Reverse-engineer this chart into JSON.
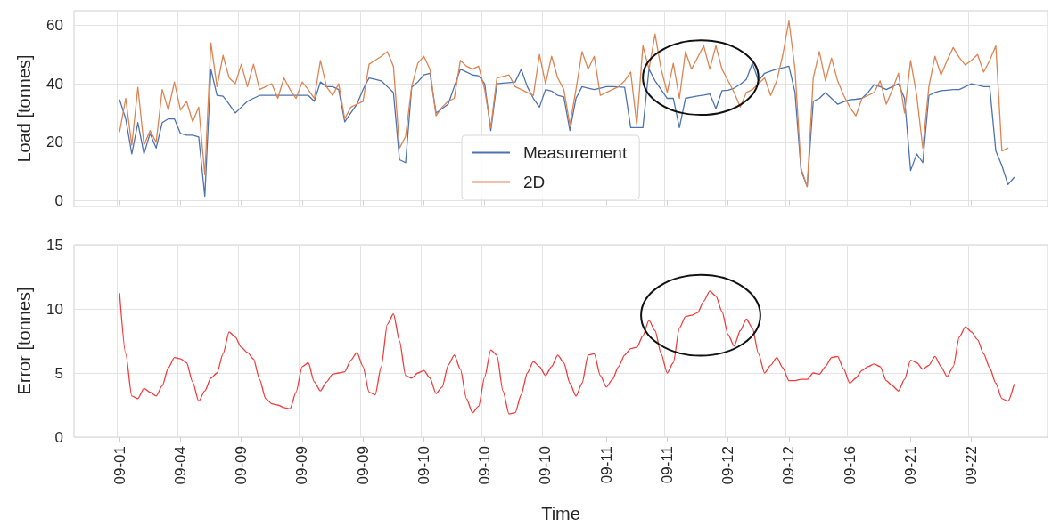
{
  "chart_data": [
    {
      "type": "line",
      "ylabel": "Load [tonnes]",
      "ylim": [
        -2,
        65
      ],
      "yticks": [
        0,
        20,
        40,
        60
      ],
      "categories": [
        null,
        null,
        null,
        null,
        null,
        null,
        null,
        null,
        null,
        null,
        null,
        null,
        null,
        null,
        null,
        null,
        null,
        null,
        null,
        null,
        null,
        null,
        null,
        null,
        null,
        null,
        null,
        null,
        null,
        null,
        null,
        null,
        null,
        null,
        null,
        null,
        null,
        null,
        null,
        null,
        null,
        null,
        null,
        null,
        null,
        null,
        null,
        null,
        null,
        null,
        null,
        null,
        null,
        null,
        null,
        null,
        null,
        null,
        null,
        null,
        null,
        null,
        null,
        null,
        null,
        null,
        null,
        null,
        null,
        null,
        null,
        null,
        null,
        null,
        null,
        null,
        null,
        null,
        null,
        null,
        null,
        null,
        null,
        null,
        null,
        null,
        null,
        null,
        null,
        null,
        null,
        null,
        null,
        null,
        null,
        null,
        null,
        null,
        null,
        null,
        null,
        null,
        null,
        null,
        null,
        null,
        null,
        null,
        null,
        null,
        null,
        null,
        null,
        null,
        null,
        null,
        null,
        null,
        null,
        null,
        null,
        null,
        null,
        null,
        null,
        null,
        null,
        null,
        null,
        null,
        null,
        null,
        null,
        null,
        null,
        null,
        null,
        null,
        null,
        null,
        null,
        null,
        null,
        null,
        null,
        null,
        null,
        null,
        null,
        null,
        null,
        null,
        null,
        null,
        null,
        null,
        null,
        null,
        null,
        null
      ],
      "tick_labels": "y",
      "grid": true,
      "legend": "bottom",
      "marker": "none",
      "line_style": "solid",
      "series": [
        {
          "name": "Measurement",
          "color": "#4c72b0",
          "values": [
            null,
            null,
            null,
            null,
            null,
            null,
            null,
            34.5,
            28,
            16,
            26.7,
            16,
            23,
            18,
            26.7,
            28,
            28,
            23,
            22.4,
            22.4,
            21.8,
            1.5,
            45,
            36,
            35.7,
            33,
            30,
            32,
            34,
            35,
            36,
            36,
            36,
            36,
            36,
            36,
            36,
            36,
            36,
            34,
            40.6,
            39,
            39,
            38,
            27,
            30,
            33,
            38,
            42,
            41.5,
            41,
            39,
            37,
            14,
            13,
            38.8,
            40.6,
            43,
            43.6,
            30,
            31.5,
            33,
            39,
            45,
            44,
            43,
            42.7,
            40,
            24,
            40,
            40.2,
            40.4,
            40.6,
            45,
            39,
            35,
            32,
            38,
            37.5,
            36,
            35.5,
            24,
            35,
            39,
            38.5,
            38,
            38.5,
            39,
            39,
            38.9,
            38.8,
            25,
            25,
            25,
            45,
            41,
            38,
            35,
            35,
            25,
            35,
            35.4,
            35.8,
            36.1,
            36.5,
            31.5,
            37.6,
            37.8,
            38.5,
            39.8,
            41.5,
            47,
            41,
            43.6,
            44.3,
            45,
            45.5,
            46,
            37,
            10.3,
            4.8,
            34,
            35,
            37,
            35,
            33,
            33.8,
            34.5,
            34.7,
            35,
            37,
            39.7,
            39,
            38,
            39,
            40,
            35,
            10.3,
            16,
            13,
            36,
            37,
            37.6,
            37.8,
            38,
            38,
            39,
            40,
            39.5,
            39,
            39,
            17,
            12,
            5.5,
            7.9,
            null,
            null,
            null,
            null,
            null
          ]
        },
        {
          "name": "2D",
          "color": "#dd8452",
          "values": [
            null,
            null,
            null,
            null,
            null,
            null,
            null,
            23.6,
            35,
            19,
            38.8,
            19,
            24,
            20,
            38,
            31,
            40.6,
            31,
            34,
            27,
            32,
            8.8,
            54,
            39,
            49.7,
            42,
            40,
            46.7,
            39,
            46.7,
            38,
            39,
            40,
            35,
            42,
            38,
            35,
            40.6,
            38,
            35,
            48,
            39,
            36,
            40,
            28,
            32,
            33,
            34,
            46.7,
            48,
            49.4,
            51,
            46,
            18,
            22,
            39,
            47,
            49.4,
            45,
            29,
            32,
            34,
            35,
            48,
            46,
            45,
            46,
            38,
            25,
            42,
            42.5,
            43,
            39,
            38,
            37,
            36,
            50,
            40,
            49.4,
            42,
            38,
            26,
            38,
            51,
            45,
            49.4,
            36,
            37,
            38,
            39,
            41,
            44,
            26,
            53,
            45,
            57,
            45,
            37,
            47,
            35,
            51,
            45,
            49,
            53,
            45,
            53,
            45,
            41,
            37,
            32,
            37,
            38,
            40,
            42,
            36,
            41,
            50,
            61.5,
            45,
            11,
            4.8,
            42,
            51,
            41,
            48.8,
            41,
            36,
            32,
            29,
            35,
            36,
            37,
            41,
            33,
            38,
            43.6,
            30,
            48,
            36,
            18,
            39,
            49.4,
            43,
            48,
            52.4,
            49,
            46.4,
            48,
            50,
            44,
            48,
            53,
            17,
            18,
            null,
            null,
            null,
            null,
            null,
            null
          ]
        }
      ]
    },
    {
      "type": "line",
      "xlabel": "Time",
      "ylabel": "Error [tonnes]",
      "ylim": [
        0,
        15
      ],
      "yticks": [
        0,
        5,
        10,
        15
      ],
      "categories": [
        null,
        null,
        null,
        null,
        null,
        null,
        null,
        "09-01",
        null,
        null,
        null,
        null,
        null,
        null,
        null,
        null,
        null,
        "09-04",
        null,
        null,
        null,
        null,
        null,
        null,
        null,
        null,
        null,
        "09-09",
        null,
        null,
        null,
        null,
        null,
        null,
        null,
        null,
        null,
        "09-09",
        null,
        null,
        null,
        null,
        null,
        null,
        null,
        null,
        null,
        "09-09",
        null,
        null,
        null,
        null,
        null,
        null,
        null,
        null,
        null,
        "09-10",
        null,
        null,
        null,
        null,
        null,
        null,
        null,
        null,
        null,
        "09-10",
        null,
        null,
        null,
        null,
        null,
        null,
        null,
        null,
        null,
        "09-10",
        null,
        null,
        null,
        null,
        null,
        null,
        null,
        null,
        null,
        "09-11",
        null,
        null,
        null,
        null,
        null,
        null,
        null,
        null,
        null,
        "09-11",
        null,
        null,
        null,
        null,
        null,
        null,
        null,
        null,
        null,
        "09-12",
        null,
        null,
        null,
        null,
        null,
        null,
        null,
        null,
        null,
        "09-12",
        null,
        null,
        null,
        null,
        null,
        null,
        null,
        null,
        null,
        "09-16",
        null,
        null,
        null,
        null,
        null,
        null,
        null,
        null,
        null,
        "09-21",
        null,
        null,
        null,
        null,
        null,
        null,
        null,
        null,
        null,
        "09-22",
        null,
        null,
        null,
        null,
        null,
        null,
        null,
        null,
        null,
        null,
        null,
        null
      ],
      "grid": true,
      "marker": "none",
      "line_style": "solid",
      "series": [
        {
          "color": "#f03c3c",
          "values": [
            null,
            null,
            null,
            null,
            null,
            null,
            null,
            11.2,
            6.5,
            3.2,
            3.0,
            3.8,
            3.5,
            3.2,
            4.0,
            5.4,
            6.2,
            6.1,
            5.8,
            4.3,
            2.8,
            3.6,
            4.6,
            5.0,
            6.5,
            8.2,
            7.8,
            7.0,
            6.6,
            6.1,
            4.5,
            3.0,
            2.6,
            2.5,
            2.3,
            2.2,
            3.5,
            5.5,
            5.8,
            4.3,
            3.6,
            4.3,
            4.9,
            5.0,
            5.1,
            6.0,
            6.6,
            5.5,
            3.5,
            3.3,
            5.5,
            8.8,
            9.6,
            7.5,
            4.8,
            4.6,
            5.0,
            5.2,
            4.6,
            3.4,
            3.9,
            5.6,
            6.4,
            5.3,
            3.0,
            1.9,
            2.4,
            4.7,
            6.8,
            6.4,
            3.6,
            1.8,
            1.9,
            3.3,
            5.0,
            5.9,
            5.5,
            4.8,
            5.5,
            6.4,
            5.8,
            4.2,
            3.2,
            4.2,
            6.4,
            6.5,
            4.8,
            3.9,
            4.5,
            5.5,
            6.4,
            6.9,
            7.0,
            7.9,
            9.1,
            8.3,
            6.5,
            5.0,
            5.8,
            8.5,
            9.4,
            9.5,
            9.7,
            10.6,
            11.4,
            11.0,
            9.8,
            8.0,
            7.1,
            8.3,
            9.2,
            8.5,
            6.5,
            5.0,
            5.6,
            6.2,
            5.4,
            4.4,
            4.4,
            4.5,
            4.5,
            5.0,
            4.9,
            5.5,
            6.2,
            6.3,
            5.3,
            4.2,
            4.6,
            5.2,
            5.5,
            5.7,
            5.5,
            4.4,
            4.0,
            3.6,
            4.5,
            6.0,
            5.8,
            5.3,
            5.6,
            6.3,
            5.5,
            4.7,
            5.5,
            7.8,
            8.6,
            8.2,
            7.6,
            6.5,
            5.4,
            4.2,
            3.0,
            2.8,
            4.1,
            null,
            null,
            null,
            null,
            null
          ]
        }
      ]
    }
  ]
}
